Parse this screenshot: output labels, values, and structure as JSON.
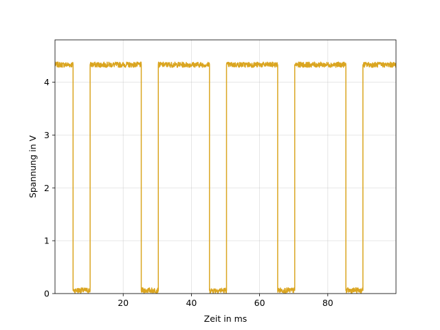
{
  "chart_data": {
    "type": "line",
    "title": "",
    "xlabel": "Zeit in ms",
    "ylabel": "Spannung in V",
    "xlim": [
      0,
      100
    ],
    "ylim": [
      0,
      4.8
    ],
    "xticks": [
      20,
      40,
      60,
      80
    ],
    "yticks": [
      0,
      1,
      2,
      3,
      4
    ],
    "grid": true,
    "legend": "none",
    "series": [
      {
        "color": "#DAA520",
        "high_level": 4.33,
        "low_level": 0.06,
        "noise_amplitude": 0.05,
        "x": [
          0,
          5.3,
          5.3,
          10.3,
          10.3,
          25.3,
          25.3,
          30.3,
          30.3,
          45.3,
          45.3,
          50.3,
          50.3,
          65.3,
          65.3,
          70.3,
          70.3,
          85.3,
          85.3,
          90.3,
          90.3,
          100
        ],
        "y": [
          4.33,
          4.33,
          0.06,
          0.06,
          4.33,
          4.33,
          0.06,
          0.06,
          4.33,
          4.33,
          0.06,
          0.06,
          4.33,
          4.33,
          0.06,
          0.06,
          4.33,
          4.33,
          0.06,
          0.06,
          4.33,
          4.33
        ]
      }
    ]
  }
}
